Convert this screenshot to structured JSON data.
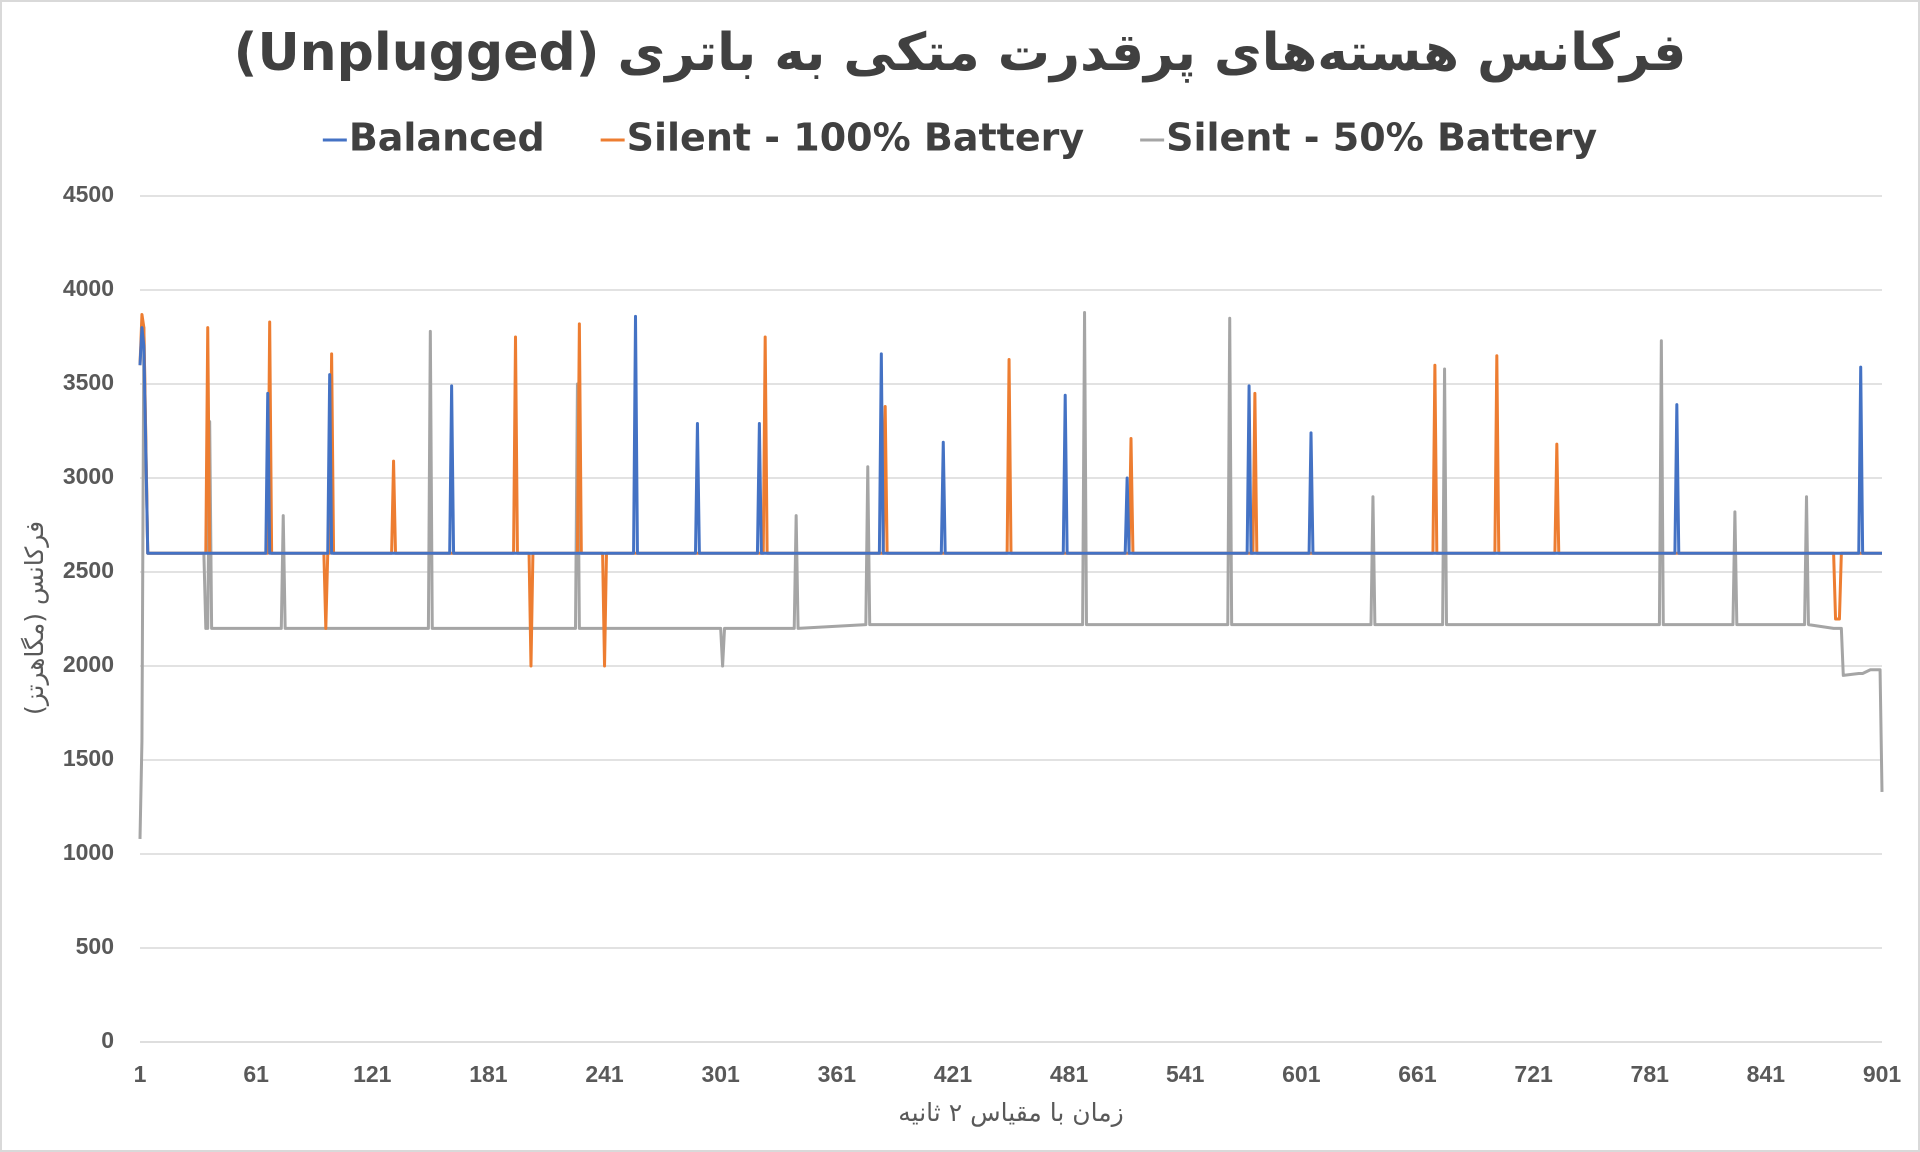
{
  "chart_data": {
    "type": "line",
    "title": "فرکانس هسته‌های پرقدرت متکی به باتری (Unplugged)",
    "x_label": "زمان با مقیاس ۲ ثانیه",
    "y_label": "فرکانس (مگاهرتز)",
    "xlim": [
      1,
      901
    ],
    "xticks": [
      1,
      61,
      121,
      181,
      241,
      301,
      361,
      421,
      481,
      541,
      601,
      661,
      721,
      781,
      841,
      901
    ],
    "ylim": [
      0,
      4500
    ],
    "yticks": [
      0,
      500,
      1000,
      1500,
      2000,
      2500,
      3000,
      3500,
      4000,
      4500
    ],
    "grid": true,
    "legend": "top",
    "x": [
      1,
      2,
      3,
      5,
      30,
      34,
      35,
      36,
      37,
      38,
      66,
      67,
      68,
      69,
      74,
      75,
      76,
      96,
      97,
      98,
      99,
      100,
      101,
      131,
      132,
      133,
      150,
      151,
      152,
      161,
      162,
      163,
      194,
      195,
      196,
      202,
      203,
      204,
      226,
      227,
      228,
      229,
      240,
      241,
      242,
      256,
      257,
      258,
      288,
      289,
      290,
      301,
      302,
      303,
      320,
      321,
      322,
      323,
      324,
      325,
      339,
      340,
      341,
      376,
      377,
      378,
      383,
      384,
      385,
      386,
      387,
      415,
      416,
      417,
      449,
      450,
      451,
      478,
      479,
      480,
      488,
      489,
      490,
      510,
      511,
      512,
      513,
      514,
      563,
      564,
      565,
      573,
      574,
      575,
      576,
      577,
      578,
      605,
      606,
      607,
      637,
      638,
      639,
      669,
      670,
      671,
      674,
      675,
      676,
      701,
      702,
      703,
      732,
      733,
      734,
      786,
      787,
      788,
      794,
      795,
      796,
      824,
      825,
      826,
      861,
      862,
      863,
      876,
      877,
      878,
      879,
      880,
      881,
      889,
      890,
      891,
      895,
      900,
      901
    ],
    "series": [
      {
        "name": "Balanced",
        "color": "#4472c4",
        "values": [
          3600,
          3800,
          3700,
          2600,
          2600,
          2600,
          2600,
          2600,
          2600,
          2600,
          2600,
          3450,
          2600,
          2600,
          2600,
          2600,
          2600,
          2600,
          2600,
          2600,
          3550,
          2600,
          2600,
          2600,
          2600,
          2600,
          2600,
          2600,
          2600,
          2600,
          3490,
          2600,
          2600,
          2600,
          2600,
          2600,
          2600,
          2600,
          2600,
          2600,
          2600,
          2600,
          2600,
          2600,
          2600,
          2600,
          3860,
          2600,
          2600,
          3290,
          2600,
          2600,
          2600,
          2600,
          2600,
          3290,
          2600,
          2600,
          2600,
          2600,
          2600,
          2600,
          2600,
          2600,
          2600,
          2600,
          2600,
          3660,
          2600,
          2600,
          2600,
          2600,
          3190,
          2600,
          2600,
          2600,
          2600,
          2600,
          3440,
          2600,
          2600,
          2600,
          2600,
          2600,
          3000,
          2600,
          2600,
          2600,
          2600,
          2600,
          2600,
          2600,
          3490,
          2600,
          2600,
          2600,
          2600,
          2600,
          3240,
          2600,
          2600,
          2600,
          2600,
          2600,
          2600,
          2600,
          2600,
          2600,
          2600,
          2600,
          2600,
          2600,
          2600,
          2600,
          2600,
          2600,
          2600,
          2600,
          2600,
          3390,
          2600,
          2600,
          2600,
          2600,
          2600,
          2600,
          2600,
          2600,
          2600,
          2600,
          2600,
          2600,
          2600,
          2600,
          3590,
          2600,
          2600,
          2600,
          2600
        ]
      },
      {
        "name": "Silent - 100% Battery",
        "color": "#ed7d31",
        "values": [
          3600,
          3870,
          3800,
          2600,
          2600,
          2600,
          2600,
          3800,
          2600,
          2600,
          2600,
          2600,
          3830,
          2600,
          2600,
          2600,
          2600,
          2600,
          2200,
          2600,
          2600,
          3660,
          2600,
          2600,
          3090,
          2600,
          2600,
          2600,
          2600,
          2600,
          2600,
          2600,
          2600,
          3750,
          2600,
          2600,
          2000,
          2600,
          2600,
          2600,
          3820,
          2600,
          2600,
          2000,
          2600,
          2600,
          2600,
          2600,
          2600,
          2600,
          2600,
          2600,
          2600,
          2600,
          2600,
          2600,
          2600,
          2600,
          3750,
          2600,
          2600,
          2600,
          2600,
          2600,
          2600,
          2600,
          2600,
          2600,
          2600,
          3380,
          2600,
          2600,
          2600,
          2600,
          2600,
          3630,
          2600,
          2600,
          2600,
          2600,
          2600,
          2600,
          2600,
          2600,
          2600,
          2600,
          3210,
          2600,
          2600,
          2600,
          2600,
          2600,
          2600,
          2600,
          2600,
          3450,
          2600,
          2600,
          2600,
          2600,
          2600,
          2600,
          2600,
          2600,
          3600,
          2600,
          2600,
          2600,
          2600,
          2600,
          3650,
          2600,
          2600,
          3180,
          2600,
          2600,
          2600,
          2600,
          2600,
          2600,
          2600,
          2600,
          2600,
          2600,
          2600,
          2600,
          2600,
          2600,
          2250,
          2250,
          2250,
          2600,
          2600,
          2600,
          2600,
          2600,
          2600,
          2600,
          2600
        ]
      },
      {
        "name": "Silent - 50% Battery",
        "color": "#a5a5a5",
        "values": [
          1080,
          1600,
          3800,
          2600,
          2600,
          2600,
          2200,
          2200,
          3300,
          2200,
          2200,
          2200,
          2200,
          2200,
          2200,
          2800,
          2200,
          2200,
          2200,
          2200,
          2200,
          2200,
          2200,
          2200,
          2200,
          2200,
          2200,
          3780,
          2200,
          2200,
          2200,
          2200,
          2200,
          2200,
          2200,
          2200,
          2200,
          2200,
          2200,
          3500,
          2200,
          2200,
          2200,
          2200,
          2200,
          2200,
          2200,
          2200,
          2200,
          2200,
          2200,
          2200,
          2000,
          2200,
          2200,
          2200,
          2200,
          2200,
          2200,
          2200,
          2200,
          2800,
          2200,
          2220,
          3060,
          2220,
          2220,
          2220,
          2220,
          2220,
          2220,
          2220,
          2220,
          2220,
          2220,
          2220,
          2220,
          2220,
          2220,
          2220,
          2220,
          3880,
          2220,
          2220,
          2220,
          2220,
          2220,
          2220,
          2220,
          3850,
          2220,
          2220,
          2220,
          2220,
          2220,
          2220,
          2220,
          2220,
          2220,
          2220,
          2220,
          2900,
          2220,
          2220,
          2220,
          2220,
          2220,
          3580,
          2220,
          2220,
          2220,
          2220,
          2220,
          2220,
          2220,
          2220,
          3730,
          2220,
          2220,
          2220,
          2220,
          2220,
          2820,
          2220,
          2220,
          2900,
          2220,
          2200,
          2200,
          2200,
          2200,
          2200,
          1950,
          1960,
          1960,
          1960,
          1980,
          1980,
          1330
        ]
      }
    ]
  }
}
